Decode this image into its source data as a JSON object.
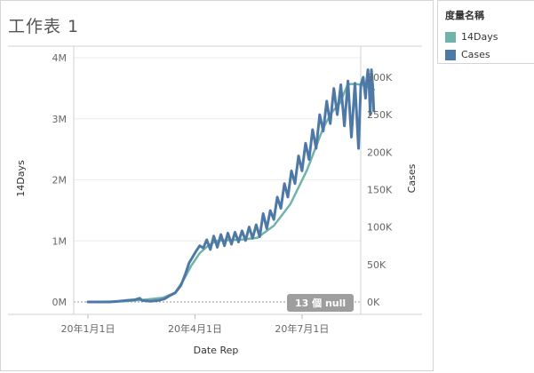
{
  "worksheet": {
    "title": "工作表 1"
  },
  "legend": {
    "title": "度量名稱",
    "items": [
      {
        "label": "14Days",
        "color": "#6fb3aa"
      },
      {
        "label": "Cases",
        "color": "#4e79a7"
      }
    ]
  },
  "null_indicator": "13 個 null",
  "chart_data": {
    "type": "line",
    "xlabel": "Date Rep",
    "ylabel_left": "14Days",
    "ylabel_right": "Cases",
    "x_range": [
      "2020-01-01",
      "2020-09-01"
    ],
    "x_ticks": [
      {
        "date": "2020-01-01",
        "label": "20年1月1日"
      },
      {
        "date": "2020-04-01",
        "label": "20年4月1日"
      },
      {
        "date": "2020-07-01",
        "label": "20年7月1日"
      }
    ],
    "ylim_left": [
      0,
      4000000
    ],
    "yticks_left": [
      {
        "value": 0,
        "label": "0M"
      },
      {
        "value": 1000000,
        "label": "1M"
      },
      {
        "value": 2000000,
        "label": "2M"
      },
      {
        "value": 3000000,
        "label": "3M"
      },
      {
        "value": 4000000,
        "label": "4M"
      }
    ],
    "ylim_right": [
      0,
      326000
    ],
    "yticks_right": [
      {
        "value": 0,
        "label": "0K"
      },
      {
        "value": 50000,
        "label": "50K"
      },
      {
        "value": 100000,
        "label": "100K"
      },
      {
        "value": 150000,
        "label": "150K"
      },
      {
        "value": 200000,
        "label": "200K"
      },
      {
        "value": 250000,
        "label": "250K"
      },
      {
        "value": 300000,
        "label": "300K"
      }
    ],
    "grid": true,
    "legend_position": "right",
    "series": [
      {
        "name": "14Days",
        "axis": "left",
        "color": "#6fb3aa",
        "points": [
          [
            "2020-01-01",
            0
          ],
          [
            "2020-02-01",
            10000
          ],
          [
            "2020-02-20",
            40000
          ],
          [
            "2020-03-05",
            70000
          ],
          [
            "2020-03-15",
            150000
          ],
          [
            "2020-03-22",
            350000
          ],
          [
            "2020-03-29",
            600000
          ],
          [
            "2020-04-05",
            800000
          ],
          [
            "2020-04-12",
            920000
          ],
          [
            "2020-04-19",
            1000000
          ],
          [
            "2020-04-26",
            1010000
          ],
          [
            "2020-05-10",
            1020000
          ],
          [
            "2020-05-24",
            1050000
          ],
          [
            "2020-06-07",
            1250000
          ],
          [
            "2020-06-21",
            1600000
          ],
          [
            "2020-07-05",
            2150000
          ],
          [
            "2020-07-19",
            2850000
          ],
          [
            "2020-07-26",
            3100000
          ],
          [
            "2020-08-02",
            3250000
          ],
          [
            "2020-08-09",
            3570000
          ],
          [
            "2020-08-16",
            3570000
          ],
          [
            "2020-08-23",
            3550000
          ],
          [
            "2020-08-28",
            3500000
          ],
          [
            "2020-08-31",
            3480000
          ]
        ]
      },
      {
        "name": "Cases",
        "axis": "right",
        "color": "#4e79a7",
        "points": [
          [
            "2020-01-01",
            0
          ],
          [
            "2020-01-20",
            0
          ],
          [
            "2020-01-27",
            1000
          ],
          [
            "2020-02-03",
            2000
          ],
          [
            "2020-02-10",
            3000
          ],
          [
            "2020-02-14",
            5000
          ],
          [
            "2020-02-16",
            2000
          ],
          [
            "2020-02-23",
            1000
          ],
          [
            "2020-03-01",
            2000
          ],
          [
            "2020-03-06",
            4000
          ],
          [
            "2020-03-10",
            8000
          ],
          [
            "2020-03-15",
            12000
          ],
          [
            "2020-03-20",
            22000
          ],
          [
            "2020-03-24",
            38000
          ],
          [
            "2020-03-27",
            52000
          ],
          [
            "2020-03-30",
            60000
          ],
          [
            "2020-04-02",
            68000
          ],
          [
            "2020-04-05",
            75000
          ],
          [
            "2020-04-08",
            72000
          ],
          [
            "2020-04-11",
            83000
          ],
          [
            "2020-04-14",
            70000
          ],
          [
            "2020-04-17",
            88000
          ],
          [
            "2020-04-20",
            73000
          ],
          [
            "2020-04-23",
            90000
          ],
          [
            "2020-04-26",
            75000
          ],
          [
            "2020-04-29",
            92000
          ],
          [
            "2020-05-02",
            77000
          ],
          [
            "2020-05-05",
            93000
          ],
          [
            "2020-05-08",
            80000
          ],
          [
            "2020-05-11",
            95000
          ],
          [
            "2020-05-14",
            82000
          ],
          [
            "2020-05-17",
            100000
          ],
          [
            "2020-05-20",
            85000
          ],
          [
            "2020-05-23",
            103000
          ],
          [
            "2020-05-26",
            87000
          ],
          [
            "2020-05-29",
            118000
          ],
          [
            "2020-06-01",
            98000
          ],
          [
            "2020-06-04",
            122000
          ],
          [
            "2020-06-07",
            110000
          ],
          [
            "2020-06-10",
            140000
          ],
          [
            "2020-06-13",
            125000
          ],
          [
            "2020-06-16",
            158000
          ],
          [
            "2020-06-19",
            140000
          ],
          [
            "2020-06-22",
            175000
          ],
          [
            "2020-06-25",
            158000
          ],
          [
            "2020-06-28",
            195000
          ],
          [
            "2020-07-01",
            175000
          ],
          [
            "2020-07-04",
            212000
          ],
          [
            "2020-07-07",
            190000
          ],
          [
            "2020-07-10",
            230000
          ],
          [
            "2020-07-13",
            205000
          ],
          [
            "2020-07-16",
            250000
          ],
          [
            "2020-07-19",
            228000
          ],
          [
            "2020-07-22",
            268000
          ],
          [
            "2020-07-25",
            238000
          ],
          [
            "2020-07-28",
            285000
          ],
          [
            "2020-07-31",
            250000
          ],
          [
            "2020-08-03",
            290000
          ],
          [
            "2020-08-06",
            235000
          ],
          [
            "2020-08-09",
            295000
          ],
          [
            "2020-08-12",
            220000
          ],
          [
            "2020-08-15",
            292000
          ],
          [
            "2020-08-18",
            205000
          ],
          [
            "2020-08-20",
            290000
          ],
          [
            "2020-08-22",
            300000
          ],
          [
            "2020-08-24",
            272000
          ],
          [
            "2020-08-25",
            295000
          ],
          [
            "2020-08-26",
            310000
          ],
          [
            "2020-08-27",
            290000
          ],
          [
            "2020-08-28",
            250000
          ],
          [
            "2020-08-29",
            310000
          ],
          [
            "2020-08-30",
            290000
          ],
          [
            "2020-08-31",
            255000
          ]
        ]
      }
    ]
  }
}
